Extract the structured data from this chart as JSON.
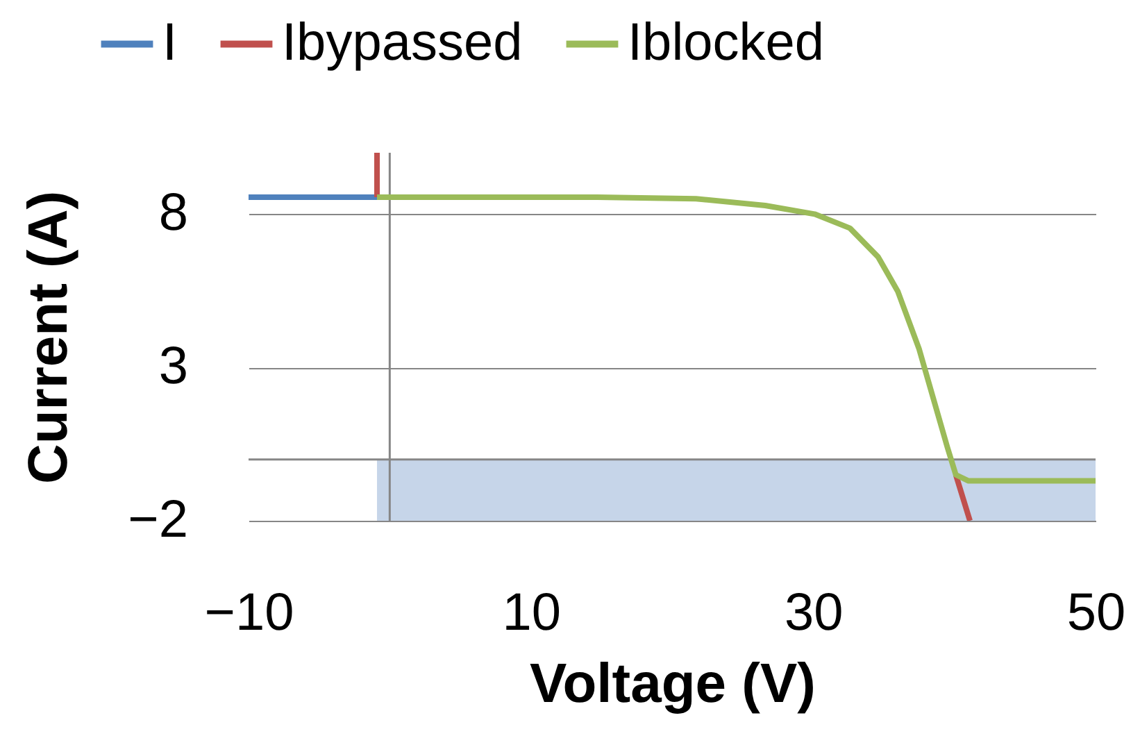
{
  "chart_data": {
    "type": "line",
    "xlabel": "Voltage (V)",
    "ylabel": "Current (A)",
    "xlim": [
      -10,
      50
    ],
    "xticks": [
      -10,
      10,
      30,
      50
    ],
    "ylim": [
      -2,
      10
    ],
    "yticks": [
      -2,
      3,
      8
    ],
    "grid": "y",
    "legend": "top",
    "series": [
      {
        "type": "area",
        "color": "#c6d5e9",
        "x": [
          -0.9,
          50
        ],
        "values": [
          -2,
          -2
        ]
      },
      {
        "name": "I",
        "color": "#4f81bd",
        "x": [
          -10,
          -0.9
        ],
        "values": [
          8.55,
          8.55
        ]
      },
      {
        "name": "Ibypassed",
        "color": "#c0504d",
        "x": [
          -0.9,
          -0.9,
          20,
          40.1,
          41.1
        ],
        "values": [
          10,
          8.55,
          null,
          -0.5,
          -2
        ]
      },
      {
        "name": "Iblocked",
        "color": "#9bbb59",
        "x": [
          -0.9,
          14.7,
          21.7,
          26.6,
          30.1,
          32.6,
          34.6,
          36,
          37.5,
          38.5,
          39.5,
          40.1,
          41,
          42.5,
          50
        ],
        "values": [
          8.55,
          8.55,
          8.5,
          8.28,
          8,
          7.54,
          6.6,
          5.47,
          3.6,
          2,
          0.4,
          -0.5,
          -0.7,
          -0.7,
          -0.7
        ]
      }
    ]
  }
}
